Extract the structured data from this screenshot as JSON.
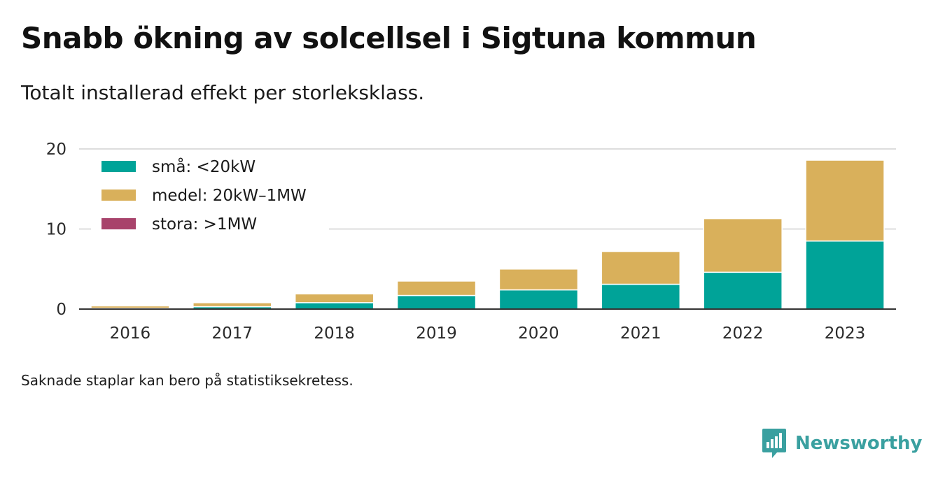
{
  "header": {
    "title": "Snabb ökning av solcellsel i Sigtuna kommun",
    "subtitle": "Totalt installerad effekt per storleksklass."
  },
  "footer": {
    "note": "Saknade staplar kan bero på statistiksekretess.",
    "brand": "Newsworthy"
  },
  "icons": {
    "brand_logo": "newsworthy-logo-icon"
  },
  "chart_data": {
    "type": "bar",
    "stacked": true,
    "categories": [
      "2016",
      "2017",
      "2018",
      "2019",
      "2020",
      "2021",
      "2022",
      "2023"
    ],
    "series": [
      {
        "name": "små: <20kW",
        "color": "#00a398",
        "values": [
          0.1,
          0.3,
          0.8,
          1.7,
          2.4,
          3.1,
          4.6,
          8.5
        ]
      },
      {
        "name": "medel: 20kW–1MW",
        "color": "#d9b05b",
        "values": [
          0.3,
          0.5,
          1.1,
          1.8,
          2.6,
          4.1,
          6.7,
          10.1
        ]
      },
      {
        "name": "stora: >1MW",
        "color": "#a8436b",
        "values": [
          0,
          0,
          0,
          0,
          0,
          0,
          0,
          0
        ]
      }
    ],
    "ylim": [
      0,
      20
    ],
    "yticks": [
      0,
      10,
      20
    ],
    "grid": true,
    "legend_position": "top-left",
    "title": "",
    "xlabel": "",
    "ylabel": ""
  }
}
